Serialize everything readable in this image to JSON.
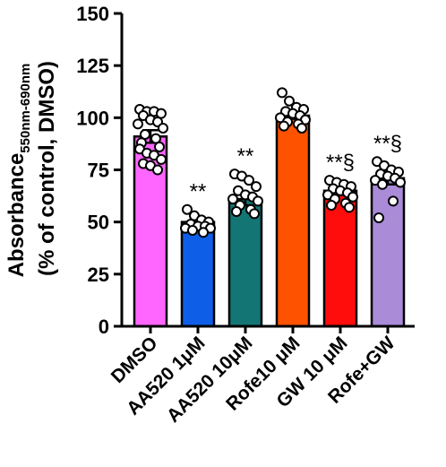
{
  "chart_data": {
    "type": "bar",
    "title": "",
    "ylabel_main": "Absorbance",
    "ylabel_sub": "550nm-690nm",
    "ylabel_line2": "(% of control, DMSO)",
    "xlabel": "",
    "ylim": [
      0,
      150
    ],
    "yticks": [
      0,
      25,
      50,
      75,
      100,
      125,
      150
    ],
    "categories": [
      "DMSO",
      "AA520 1μM",
      "AA520 10μM",
      "Rofe10 μM",
      "GW 10 μM",
      "Rofe+GW"
    ],
    "values": [
      91,
      50,
      61,
      101,
      65,
      71
    ],
    "errors": [
      3,
      2,
      3,
      1.5,
      2,
      3
    ],
    "colors": [
      "#ff66ff",
      "#0f5ee8",
      "#147575",
      "#ff5200",
      "#ff0d0d",
      "#a98bd8"
    ],
    "annotations": [
      "",
      "**",
      "**",
      "",
      "**§",
      "**§"
    ],
    "points": [
      [
        104,
        103,
        103,
        102,
        101,
        99,
        98,
        97,
        95,
        92,
        90,
        88,
        86,
        85,
        83,
        82,
        80,
        78,
        77,
        75
      ],
      [
        56,
        53,
        51,
        50,
        49,
        48,
        48,
        47,
        47,
        46,
        45
      ],
      [
        73,
        72,
        70,
        67,
        65,
        63,
        62,
        61,
        60,
        58,
        56,
        55,
        54
      ],
      [
        112,
        108,
        105,
        104,
        103,
        102,
        101,
        100,
        99,
        98,
        97,
        96,
        95
      ],
      [
        70,
        69,
        68,
        67,
        66,
        65,
        64,
        63,
        62,
        61,
        59,
        58,
        57
      ],
      [
        79,
        77,
        75,
        74,
        73,
        72,
        71,
        70,
        69,
        68,
        60,
        52
      ]
    ],
    "grid": false,
    "legend": "none"
  }
}
